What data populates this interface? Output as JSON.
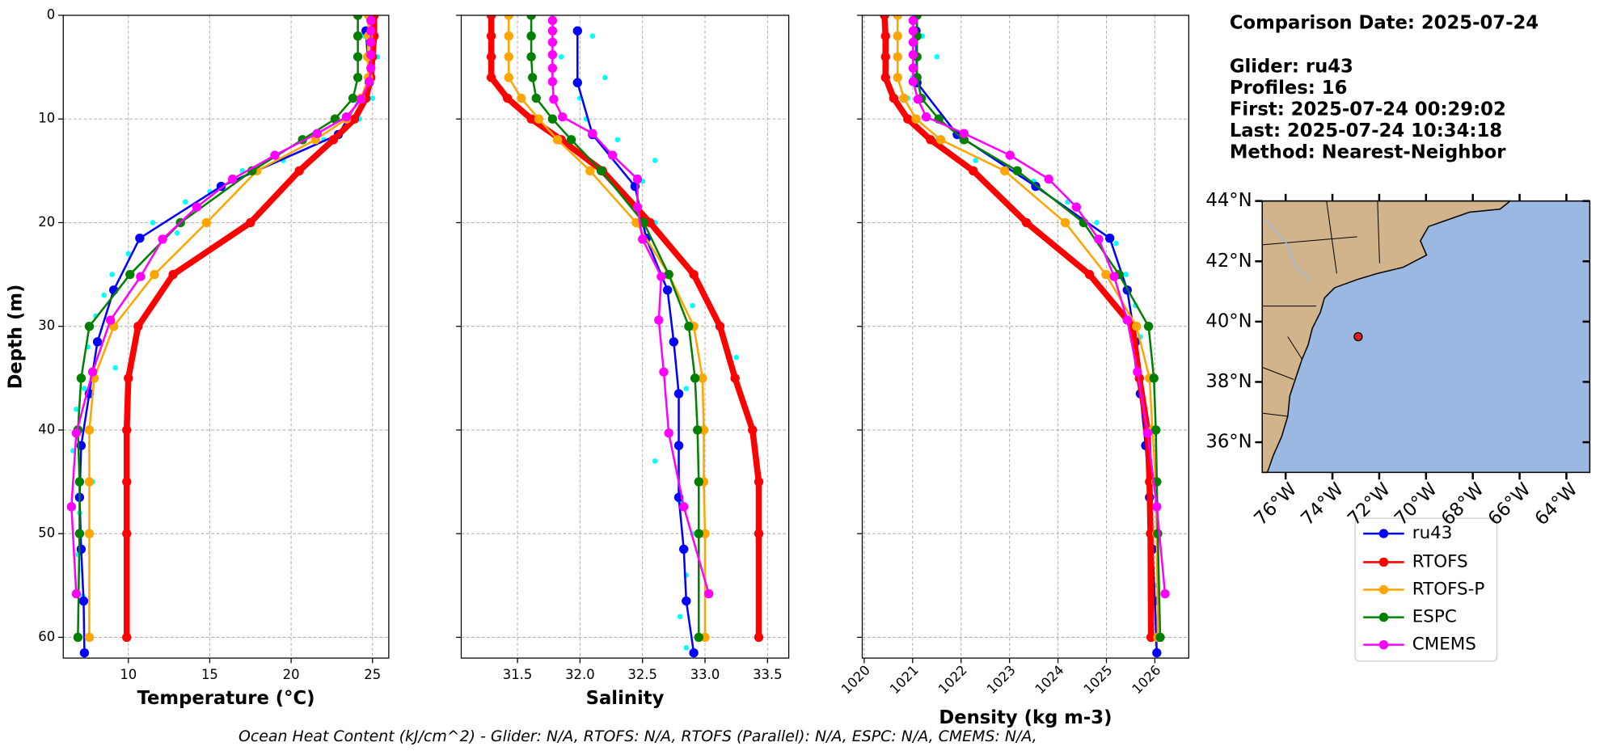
{
  "info": {
    "lines": [
      "Comparison Date: 2025-07-24",
      "Glider: ru43",
      "Profiles: 16",
      "First: 2025-07-24 00:29:02",
      "Last: 2025-07-24 10:34:18",
      "Method: Nearest-Neighbor"
    ],
    "footer": "Ocean Heat Content (kJ/cm^2) - Glider: N/A,  RTOFS: N/A,  RTOFS (Parallel): N/A,  ESPC: N/A,  CMEMS: N/A,"
  },
  "chart_data": [
    {
      "type": "profile",
      "xlabel": "Temperature (°C)",
      "ylabel": "Depth (m)",
      "xlim": [
        6,
        26
      ],
      "xticks": [
        10,
        15,
        20,
        25
      ],
      "ylim": [
        0,
        62
      ],
      "y_inverted": true,
      "yticks": [
        0,
        10,
        20,
        30,
        40,
        50,
        60
      ],
      "grid": true,
      "scatter": {
        "color": "#00ffff",
        "depth": [
          2,
          4,
          6,
          8,
          10,
          12,
          14,
          15,
          17,
          18,
          20,
          21,
          23,
          25,
          27,
          29,
          32,
          34,
          36,
          38,
          42,
          45,
          48,
          52,
          56,
          60
        ],
        "values": [
          24.5,
          25.3,
          24.8,
          25,
          24.2,
          22,
          19.5,
          17,
          15,
          13.5,
          11.5,
          13,
          10,
          9,
          8.5,
          8,
          7.5,
          9.2,
          7.3,
          6.8,
          6.6,
          7.8,
          7,
          6.9,
          7.2,
          7.0
        ]
      },
      "series": [
        {
          "name": "ru43",
          "color": "#0000ff",
          "linewidth": 2,
          "depth": [
            1.5,
            6.5,
            11.5,
            16.5,
            21.5,
            26.5,
            31.5,
            36.5,
            41.5,
            46.5,
            51.5,
            56.5,
            61.5
          ],
          "values": [
            24.6,
            24.8,
            22.9,
            15.7,
            10.7,
            9.1,
            8.1,
            7.6,
            7.1,
            7.0,
            7.1,
            7.25,
            7.3
          ]
        },
        {
          "name": "RTOFS",
          "color": "#ff0000",
          "linewidth": 6,
          "depth": [
            0,
            2,
            4,
            6,
            8,
            10,
            12,
            15,
            20,
            25,
            30,
            35,
            40,
            45,
            50,
            60
          ],
          "values": [
            25.1,
            25.1,
            25.0,
            24.9,
            24.6,
            23.9,
            22.6,
            20.5,
            17.5,
            12.75,
            10.6,
            10.0,
            9.9,
            9.9,
            9.9,
            9.9
          ]
        },
        {
          "name": "RTOFS-P",
          "color": "#ffa500",
          "linewidth": 2,
          "depth": [
            0,
            2,
            4,
            6,
            8,
            10,
            12,
            15,
            20,
            25,
            30,
            35,
            40,
            45,
            50,
            60
          ],
          "values": [
            24.75,
            24.75,
            24.7,
            24.75,
            24.3,
            23.4,
            21.5,
            17.9,
            14.8,
            11.6,
            9.1,
            7.9,
            7.6,
            7.6,
            7.6,
            7.6
          ]
        },
        {
          "name": "ESPC",
          "color": "#008000",
          "linewidth": 2,
          "depth": [
            0,
            2,
            4,
            6,
            8,
            10,
            12,
            15,
            20,
            25,
            30,
            35,
            40,
            45,
            50,
            60
          ],
          "values": [
            24.1,
            24.1,
            24.1,
            24.1,
            23.8,
            22.7,
            20.7,
            17.6,
            13.2,
            10.1,
            7.6,
            7.1,
            6.9,
            7.0,
            7.0,
            6.9
          ]
        },
        {
          "name": "CMEMS",
          "color": "#ff00ff",
          "linewidth": 2,
          "depth": [
            0.5,
            1.5,
            2.6,
            3.8,
            5.1,
            6.4,
            8.1,
            9.8,
            11.4,
            13.5,
            15.8,
            18.5,
            21.6,
            25.2,
            29.4,
            34.4,
            40.3,
            47.4,
            55.8
          ],
          "values": [
            24.9,
            24.9,
            24.9,
            24.9,
            24.9,
            24.8,
            24.3,
            23.4,
            21.6,
            19.0,
            16.4,
            14.2,
            12.1,
            10.75,
            8.9,
            7.8,
            6.8,
            6.5,
            6.8
          ]
        }
      ]
    },
    {
      "type": "profile",
      "xlabel": "Salinity",
      "xlim": [
        31.05,
        33.67
      ],
      "xticks": [
        31.5,
        {
          "value": 32,
          "label": "32.0"
        },
        32.5,
        {
          "value": 33,
          "label": "33.0"
        },
        33.5
      ],
      "ylim": [
        0,
        62
      ],
      "y_inverted": true,
      "yticks": [
        0,
        10,
        20,
        30,
        40,
        50,
        60
      ],
      "grid": true,
      "scatter": {
        "color": "#00ffff",
        "depth": [
          2,
          4,
          6,
          8,
          10,
          12,
          14,
          16,
          18,
          20,
          22,
          25,
          28,
          30,
          33,
          36,
          40,
          43,
          47,
          50,
          54,
          58,
          61
        ],
        "values": [
          32.1,
          31.85,
          32.2,
          32.0,
          32.05,
          32.3,
          32.6,
          32.5,
          32.4,
          32.6,
          32.7,
          32.65,
          32.9,
          33.1,
          33.25,
          32.85,
          32.95,
          32.6,
          32.8,
          32.9,
          32.85,
          32.8,
          32.85
        ]
      },
      "series": [
        {
          "name": "ru43",
          "color": "#0000ff",
          "linewidth": 2,
          "depth": [
            1.5,
            6.5,
            11.5,
            16.5,
            21.5,
            26.5,
            31.5,
            36.5,
            41.5,
            46.5,
            51.5,
            56.5,
            61.5
          ],
          "values": [
            31.98,
            31.98,
            32.1,
            32.44,
            32.53,
            32.7,
            32.75,
            32.79,
            32.79,
            32.79,
            32.83,
            32.85,
            32.91
          ]
        },
        {
          "name": "RTOFS",
          "color": "#ff0000",
          "linewidth": 6,
          "depth": [
            0,
            2,
            4,
            6,
            8,
            10,
            12,
            15,
            20,
            25,
            30,
            35,
            40,
            45,
            50,
            60
          ],
          "values": [
            31.29,
            31.29,
            31.29,
            31.29,
            31.42,
            31.61,
            31.85,
            32.18,
            32.56,
            32.91,
            33.12,
            33.24,
            33.38,
            33.43,
            33.43,
            33.43
          ]
        },
        {
          "name": "RTOFS-P",
          "color": "#ffa500",
          "linewidth": 2,
          "depth": [
            0,
            2,
            4,
            6,
            8,
            10,
            12,
            15,
            20,
            25,
            30,
            35,
            40,
            45,
            50,
            60
          ],
          "values": [
            31.43,
            31.43,
            31.43,
            31.43,
            31.53,
            31.67,
            31.82,
            32.08,
            32.45,
            32.71,
            32.91,
            32.98,
            32.99,
            32.99,
            33.0,
            33.0
          ]
        },
        {
          "name": "ESPC",
          "color": "#008000",
          "linewidth": 2,
          "depth": [
            0,
            2,
            4,
            6,
            8,
            10,
            12,
            15,
            20,
            25,
            30,
            35,
            40,
            45,
            50,
            60
          ],
          "values": [
            31.61,
            31.61,
            31.61,
            31.62,
            31.65,
            31.78,
            31.93,
            32.17,
            32.51,
            32.71,
            32.87,
            32.92,
            32.94,
            32.95,
            32.95,
            32.95
          ]
        },
        {
          "name": "CMEMS",
          "color": "#ff00ff",
          "linewidth": 2,
          "depth": [
            0.5,
            1.5,
            2.6,
            3.8,
            5.1,
            6.4,
            8.1,
            9.8,
            11.4,
            13.5,
            15.8,
            18.5,
            21.6,
            25.2,
            29.4,
            34.4,
            40.3,
            47.4,
            55.8
          ],
          "values": [
            31.78,
            31.78,
            31.78,
            31.78,
            31.78,
            31.78,
            31.79,
            31.86,
            32.1,
            32.26,
            32.46,
            32.46,
            32.5,
            32.65,
            32.63,
            32.67,
            32.71,
            32.83,
            33.03
          ]
        }
      ]
    },
    {
      "type": "profile",
      "xlabel": "Density (kg m-3)",
      "xlim": [
        1019.96,
        1026.7
      ],
      "xticks": [
        1020,
        1021,
        1022,
        1023,
        1024,
        1025,
        1026
      ],
      "xtick_rotation": 45,
      "ylim": [
        0,
        62
      ],
      "y_inverted": true,
      "yticks": [
        0,
        10,
        20,
        30,
        40,
        50,
        60
      ],
      "grid": true,
      "scatter": {
        "color": "#00ffff",
        "depth": [
          2,
          4,
          6,
          8,
          10,
          12,
          14,
          16,
          18,
          20,
          22,
          25,
          28,
          31,
          35,
          40,
          45,
          50,
          55,
          60
        ],
        "values": [
          1021.2,
          1021.5,
          1021.0,
          1020.9,
          1021.3,
          1021.5,
          1022.3,
          1023.5,
          1024.2,
          1024.8,
          1025.2,
          1025.4,
          1025.6,
          1025.7,
          1025.9,
          1025.95,
          1026.0,
          1026.05,
          1026.0,
          1026.05
        ]
      },
      "series": [
        {
          "name": "ru43",
          "color": "#0000ff",
          "linewidth": 2,
          "depth": [
            1.5,
            6.5,
            11.5,
            16.5,
            21.5,
            26.5,
            31.5,
            36.5,
            41.5,
            46.5,
            51.5,
            56.5,
            61.5
          ],
          "values": [
            1021.07,
            1021.09,
            1021.92,
            1023.54,
            1025.07,
            1025.43,
            1025.6,
            1025.7,
            1025.81,
            1025.89,
            1025.95,
            1026.0,
            1026.04
          ]
        },
        {
          "name": "RTOFS",
          "color": "#ff0000",
          "linewidth": 6,
          "depth": [
            0,
            2,
            4,
            6,
            8,
            10,
            12,
            15,
            20,
            25,
            30,
            35,
            40,
            45,
            50,
            60
          ],
          "values": [
            1020.42,
            1020.44,
            1020.44,
            1020.44,
            1020.61,
            1020.9,
            1021.37,
            1022.25,
            1023.35,
            1024.65,
            1025.54,
            1025.68,
            1025.85,
            1025.89,
            1025.91,
            1025.92
          ]
        },
        {
          "name": "RTOFS-P",
          "color": "#ffa500",
          "linewidth": 2,
          "depth": [
            0,
            2,
            4,
            6,
            8,
            10,
            12,
            15,
            20,
            25,
            30,
            35,
            40,
            45,
            50,
            60
          ],
          "values": [
            1020.69,
            1020.69,
            1020.69,
            1020.69,
            1020.82,
            1021.07,
            1021.58,
            1022.9,
            1024.15,
            1024.99,
            1025.62,
            1025.89,
            1025.95,
            1026.02,
            1026.04,
            1026.06
          ]
        },
        {
          "name": "ESPC",
          "color": "#008000",
          "linewidth": 2,
          "depth": [
            0,
            2,
            4,
            6,
            8,
            10,
            12,
            15,
            20,
            25,
            30,
            35,
            40,
            45,
            50,
            60
          ],
          "values": [
            1021.09,
            1021.09,
            1021.09,
            1021.09,
            1021.18,
            1021.54,
            1022.06,
            1023.16,
            1024.53,
            1025.26,
            1025.87,
            1025.98,
            1026.02,
            1026.04,
            1026.06,
            1026.11
          ]
        },
        {
          "name": "CMEMS",
          "color": "#ff00ff",
          "linewidth": 2,
          "depth": [
            0.5,
            1.5,
            2.6,
            3.8,
            5.1,
            6.4,
            8.1,
            9.8,
            11.4,
            13.5,
            15.8,
            18.5,
            21.6,
            25.2,
            29.4,
            34.4,
            40.3,
            47.4,
            55.8
          ],
          "values": [
            1021.01,
            1021.01,
            1021.01,
            1021.01,
            1021.01,
            1021.01,
            1021.11,
            1021.28,
            1022.06,
            1023.01,
            1023.81,
            1024.38,
            1024.84,
            1025.16,
            1025.43,
            1025.64,
            1025.85,
            1026.04,
            1026.21
          ]
        }
      ]
    },
    {
      "type": "map",
      "xlim": [
        -77,
        -63
      ],
      "ylim": [
        35,
        44
      ],
      "xticks": [
        {
          "value": -76,
          "label": "76°W"
        },
        {
          "value": -74,
          "label": "74°W"
        },
        {
          "value": -72,
          "label": "72°W"
        },
        {
          "value": -70,
          "label": "70°W"
        },
        {
          "value": -68,
          "label": "68°W"
        },
        {
          "value": -66,
          "label": "66°W"
        },
        {
          "value": -64,
          "label": "64°W"
        }
      ],
      "yticks": [
        {
          "value": 36,
          "label": "36°N"
        },
        {
          "value": 38,
          "label": "38°N"
        },
        {
          "value": 40,
          "label": "40°N"
        },
        {
          "value": 42,
          "label": "42°N"
        },
        {
          "value": 44,
          "label": "44°N"
        }
      ],
      "land_color": "#d2b48c",
      "ocean_color": "#9ab8e2",
      "points": [
        {
          "lon": -72.9,
          "lat": 39.5,
          "color": "#e41a1c"
        }
      ]
    }
  ]
}
